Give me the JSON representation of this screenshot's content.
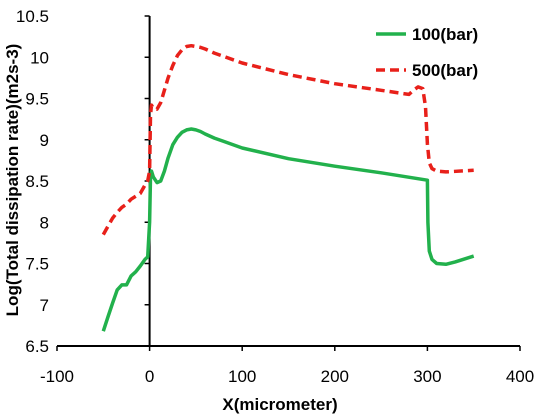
{
  "chart_data": {
    "type": "line",
    "title": "",
    "xlabel": "X(micrometer)",
    "ylabel": "Log(Total dissipation rate)(m2s-3)",
    "xlim": [
      -100,
      400
    ],
    "ylim": [
      6.5,
      10.5
    ],
    "xticks": [
      "-100",
      "0",
      "100",
      "200",
      "300",
      "400"
    ],
    "yticks": [
      "6.5",
      "7",
      "7.5",
      "8",
      "8.5",
      "9",
      "9.5",
      "10",
      "10.5"
    ],
    "grid": false,
    "legend": "top-right",
    "series": [
      {
        "name": "100(bar)",
        "color": "#22b14c",
        "dash": "solid",
        "x": [
          -50,
          -45,
          -40,
          -35,
          -30,
          -25,
          -20,
          -15,
          -10,
          -5,
          -2,
          0,
          1,
          2,
          4,
          8,
          12,
          16,
          20,
          25,
          30,
          35,
          40,
          45,
          50,
          55,
          60,
          70,
          80,
          100,
          150,
          200,
          250,
          300,
          300.5,
          302,
          305,
          310,
          320,
          330,
          350
        ],
        "y": [
          6.68,
          6.85,
          7.02,
          7.18,
          7.24,
          7.24,
          7.35,
          7.4,
          7.47,
          7.55,
          7.58,
          8.0,
          8.55,
          8.62,
          8.55,
          8.48,
          8.5,
          8.62,
          8.78,
          8.94,
          9.03,
          9.09,
          9.12,
          9.13,
          9.12,
          9.1,
          9.07,
          9.02,
          8.98,
          8.9,
          8.77,
          8.68,
          8.6,
          8.51,
          8.0,
          7.65,
          7.55,
          7.5,
          7.49,
          7.52,
          7.59
        ]
      },
      {
        "name": "500(bar)",
        "color": "#e8201a",
        "dash": "dashed",
        "x": [
          -50,
          -45,
          -40,
          -35,
          -30,
          -25,
          -20,
          -10,
          -5,
          -2,
          0,
          1,
          2,
          4,
          8,
          12,
          16,
          20,
          25,
          30,
          35,
          40,
          45,
          50,
          55,
          60,
          70,
          100,
          150,
          200,
          250,
          280,
          285,
          290,
          295,
          298,
          300,
          302,
          305,
          310,
          320,
          350
        ],
        "y": [
          7.85,
          7.95,
          8.05,
          8.12,
          8.18,
          8.22,
          8.28,
          8.35,
          8.45,
          8.5,
          8.62,
          9.3,
          9.42,
          9.38,
          9.37,
          9.45,
          9.6,
          9.75,
          9.9,
          10.02,
          10.09,
          10.13,
          10.14,
          10.13,
          10.12,
          10.1,
          10.05,
          9.93,
          9.79,
          9.68,
          9.6,
          9.55,
          9.6,
          9.64,
          9.62,
          9.4,
          8.95,
          8.72,
          8.65,
          8.62,
          8.61,
          8.63
        ]
      }
    ]
  }
}
